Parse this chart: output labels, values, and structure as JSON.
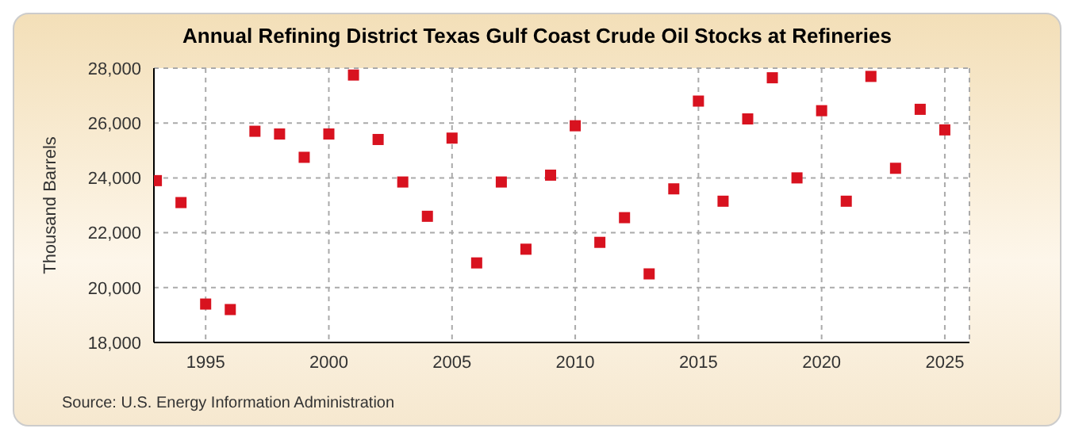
{
  "chart_data": {
    "type": "scatter",
    "title": "Annual Refining District Texas Gulf Coast Crude Oil Stocks at Refineries",
    "ylabel": "Thousand Barrels",
    "annotations": [
      "Source: U.S. Energy Information Administration"
    ],
    "x": [
      1993,
      1994,
      1995,
      1996,
      1997,
      1998,
      1999,
      2000,
      2001,
      2002,
      2003,
      2004,
      2005,
      2006,
      2007,
      2008,
      2009,
      2010,
      2011,
      2012,
      2013,
      2014,
      2015,
      2016,
      2017,
      2018,
      2019,
      2020,
      2021,
      2022,
      2023,
      2024,
      2025
    ],
    "series": [
      {
        "color": "#d8121f",
        "values": [
          23900,
          23100,
          19400,
          19200,
          25700,
          25600,
          24750,
          25600,
          27750,
          25400,
          23850,
          22600,
          25450,
          20900,
          23850,
          21400,
          24100,
          25900,
          21650,
          22550,
          20500,
          23600,
          26800,
          23150,
          26150,
          27650,
          24000,
          26450,
          23150,
          27700,
          24350,
          26500,
          25750
        ]
      }
    ],
    "xlim": [
      1992.9,
      2026
    ],
    "xticks": [
      1995,
      2000,
      2005,
      2010,
      2015,
      2020,
      2025
    ],
    "ylim": [
      18000,
      28000
    ],
    "yticks": [
      {
        "value": 18000,
        "label": "18,000"
      },
      {
        "value": 20000,
        "label": "20,000"
      },
      {
        "value": 22000,
        "label": "22,000"
      },
      {
        "value": 24000,
        "label": "24,000"
      },
      {
        "value": 26000,
        "label": "26,000"
      },
      {
        "value": 28000,
        "label": "28,000"
      }
    ],
    "grid": true,
    "marker": "square"
  }
}
